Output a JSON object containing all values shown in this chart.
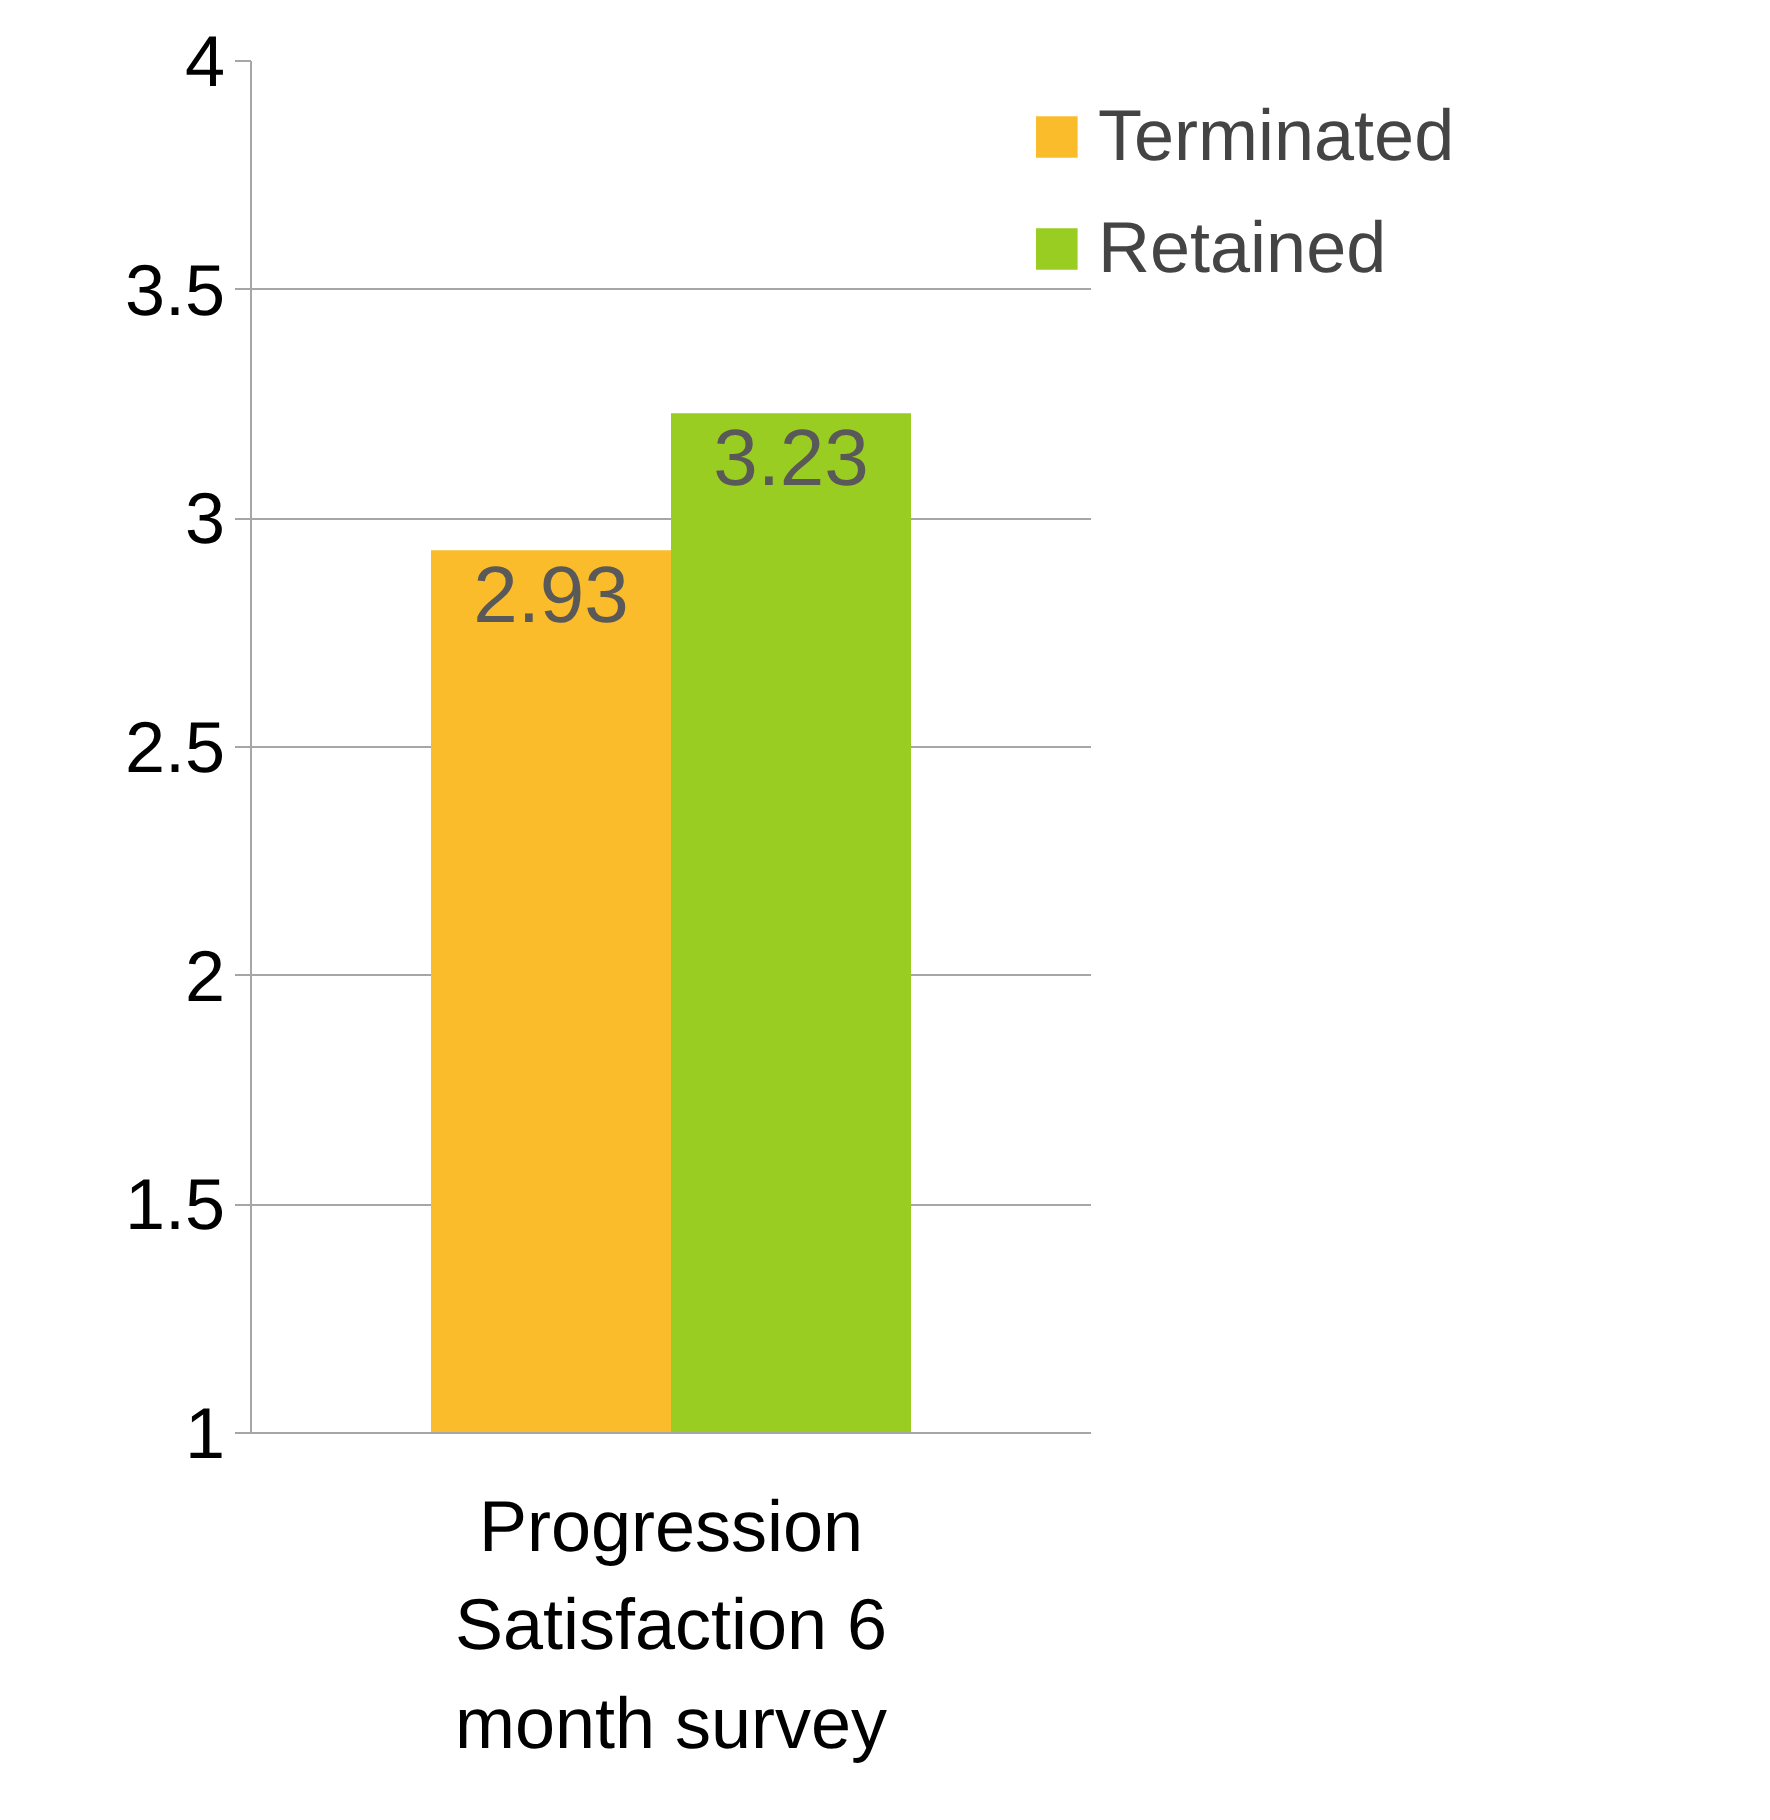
{
  "chart_data": {
    "type": "bar",
    "categories": [
      "Progression Satisfaction 6 month survey"
    ],
    "series": [
      {
        "name": "Terminated",
        "color": "#fbbc2c",
        "values": [
          2.93
        ]
      },
      {
        "name": "Retained",
        "color": "#9acd22",
        "values": [
          3.23
        ]
      }
    ],
    "ylim": [
      1,
      4
    ],
    "yticks": [
      1,
      1.5,
      2,
      2.5,
      3,
      3.5,
      4
    ],
    "grid": "y",
    "legend": "right",
    "data_labels": true
  }
}
